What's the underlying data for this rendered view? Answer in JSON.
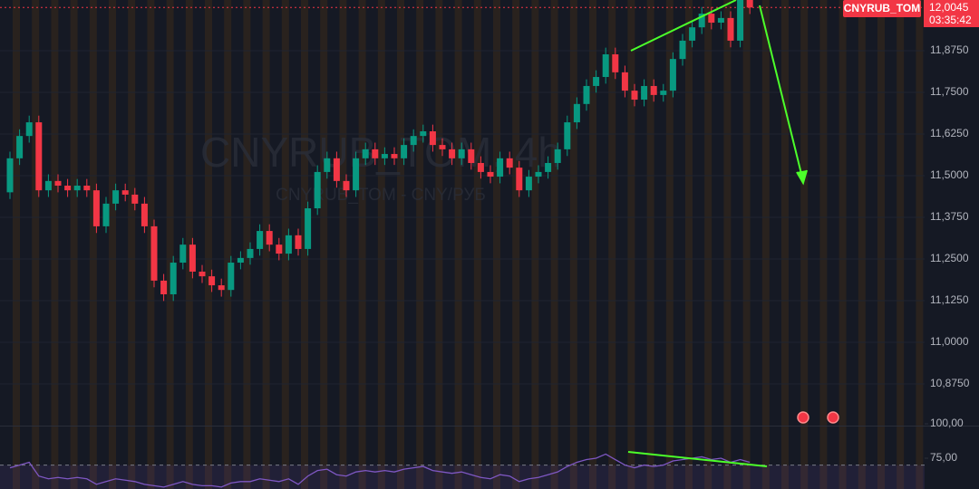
{
  "chart_data": {
    "type": "candlestick",
    "watermark_title": "CNYRUB_TOM, 4h",
    "watermark_subtitle": "CNYRUB_TOM - CNY/РУБ",
    "last_price": {
      "value": 12.0045,
      "label": "12,0045"
    },
    "countdown": "03:35:42",
    "symbol_tag": "CNYRUB_TOM",
    "up_color": "#089981",
    "down_color": "#f23645",
    "ylim": [
      10.75,
      12.027
    ],
    "yticks": [
      {
        "value": 11.875,
        "label": "11,8750"
      },
      {
        "value": 11.75,
        "label": "11,7500"
      },
      {
        "value": 11.625,
        "label": "11,6250"
      },
      {
        "value": 11.5,
        "label": "11,5000"
      },
      {
        "value": 11.375,
        "label": "11,3750"
      },
      {
        "value": 11.25,
        "label": "11,2500"
      },
      {
        "value": 11.125,
        "label": "11,1250"
      },
      {
        "value": 11.0,
        "label": "11,0000"
      },
      {
        "value": 10.875,
        "label": "10,8750"
      }
    ],
    "open": [
      11.45,
      11.552,
      11.619,
      11.66,
      11.456,
      11.484,
      11.47,
      11.456,
      11.47,
      11.456,
      11.348,
      11.416,
      11.456,
      11.443,
      11.416,
      11.348,
      11.185,
      11.144,
      11.239,
      11.293,
      11.212,
      11.198,
      11.171,
      11.157,
      11.239,
      11.253,
      11.28,
      11.334,
      11.293,
      11.266,
      11.321,
      11.28,
      11.402,
      11.511,
      11.552,
      11.484,
      11.456,
      11.552,
      11.579,
      11.552,
      11.565,
      11.552,
      11.592,
      11.619,
      11.633,
      11.592,
      11.579,
      11.552,
      11.579,
      11.538,
      11.511,
      11.497,
      11.552,
      11.524,
      11.456,
      11.497,
      11.511,
      11.538,
      11.579,
      11.66,
      11.715,
      11.769,
      11.796,
      11.864,
      11.81,
      11.755,
      11.728,
      11.769,
      11.742,
      11.755,
      11.85,
      11.905,
      11.945,
      11.986,
      11.959,
      11.973,
      11.905,
      12.027
    ],
    "high": [
      11.572,
      11.639,
      11.68,
      11.68,
      11.504,
      11.504,
      11.49,
      11.49,
      11.49,
      11.476,
      11.436,
      11.476,
      11.476,
      11.463,
      11.436,
      11.368,
      11.205,
      11.259,
      11.313,
      11.313,
      11.232,
      11.218,
      11.191,
      11.259,
      11.273,
      11.3,
      11.354,
      11.354,
      11.313,
      11.341,
      11.341,
      11.422,
      11.531,
      11.572,
      11.572,
      11.504,
      11.572,
      11.599,
      11.599,
      11.585,
      11.585,
      11.612,
      11.639,
      11.653,
      11.653,
      11.612,
      11.599,
      11.599,
      11.599,
      11.558,
      11.531,
      11.572,
      11.572,
      11.544,
      11.517,
      11.531,
      11.558,
      11.599,
      11.68,
      11.735,
      11.789,
      11.816,
      11.884,
      11.884,
      11.83,
      11.775,
      11.789,
      11.789,
      11.775,
      11.87,
      11.925,
      11.965,
      12.006,
      12.006,
      11.993,
      11.993,
      12.037,
      12.037
    ],
    "low": [
      11.43,
      11.532,
      11.599,
      11.436,
      11.436,
      11.45,
      11.436,
      11.436,
      11.436,
      11.328,
      11.328,
      11.396,
      11.423,
      11.396,
      11.328,
      11.165,
      11.124,
      11.124,
      11.219,
      11.192,
      11.178,
      11.151,
      11.137,
      11.137,
      11.219,
      11.233,
      11.26,
      11.273,
      11.246,
      11.246,
      11.26,
      11.26,
      11.382,
      11.491,
      11.464,
      11.436,
      11.436,
      11.532,
      11.532,
      11.532,
      11.532,
      11.532,
      11.572,
      11.599,
      11.572,
      11.559,
      11.532,
      11.532,
      11.518,
      11.491,
      11.477,
      11.477,
      11.504,
      11.436,
      11.436,
      11.477,
      11.491,
      11.518,
      11.559,
      11.64,
      11.695,
      11.749,
      11.776,
      11.79,
      11.735,
      11.708,
      11.708,
      11.722,
      11.722,
      11.735,
      11.83,
      11.885,
      11.925,
      11.939,
      11.939,
      11.885,
      11.885,
      11.985
    ],
    "close": [
      11.552,
      11.619,
      11.66,
      11.456,
      11.484,
      11.47,
      11.456,
      11.47,
      11.456,
      11.348,
      11.416,
      11.456,
      11.443,
      11.416,
      11.348,
      11.185,
      11.144,
      11.239,
      11.293,
      11.212,
      11.198,
      11.171,
      11.157,
      11.239,
      11.253,
      11.28,
      11.334,
      11.293,
      11.266,
      11.321,
      11.28,
      11.402,
      11.511,
      11.552,
      11.484,
      11.456,
      11.552,
      11.579,
      11.552,
      11.565,
      11.552,
      11.592,
      11.619,
      11.633,
      11.592,
      11.579,
      11.552,
      11.579,
      11.538,
      11.511,
      11.497,
      11.552,
      11.524,
      11.456,
      11.497,
      11.511,
      11.538,
      11.579,
      11.66,
      11.715,
      11.769,
      11.796,
      11.864,
      11.81,
      11.755,
      11.728,
      11.769,
      11.742,
      11.755,
      11.85,
      11.905,
      11.945,
      11.986,
      11.959,
      11.973,
      11.905,
      12.027,
      12.0045
    ],
    "rsi": {
      "color": "#7e57c2",
      "ylim": [
        52.6,
        98.7
      ],
      "yticks": [
        {
          "value": 100,
          "label": "100,00"
        },
        {
          "value": 75,
          "label": "75,00"
        }
      ],
      "levels": [
        70
      ],
      "values": [
        68,
        70,
        72,
        62,
        60,
        61,
        60,
        61,
        60,
        56,
        58,
        60,
        59,
        58,
        56,
        55,
        54,
        56,
        58,
        56,
        55,
        55,
        54,
        57,
        58,
        58,
        60,
        59,
        58,
        60,
        56,
        62,
        66,
        67,
        63,
        62,
        65,
        66,
        65,
        66,
        65,
        67,
        68,
        69,
        66,
        65,
        64,
        65,
        63,
        61,
        60,
        63,
        62,
        58,
        60,
        61,
        63,
        65,
        69,
        72,
        74,
        75,
        78,
        74,
        70,
        68,
        70,
        69,
        70,
        73,
        74,
        75,
        76,
        74,
        75,
        72,
        74,
        72
      ]
    }
  }
}
